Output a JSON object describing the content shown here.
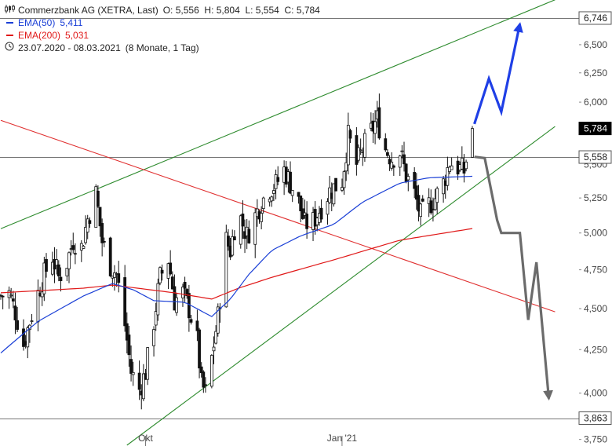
{
  "legend": {
    "instrument": "Commerzbank AG (XETRA, Last)",
    "ohlc": "O: 5,556  H: 5,804  L: 5,554  C: 5,784",
    "ema50_label": "EMA(50)",
    "ema50_value": "5,411",
    "ema200_label": "EMA(200)",
    "ema200_value": "5,031",
    "period": "23.07.2020 - 08.03.2021",
    "period_span": "(8 Monate, 1 Tag)"
  },
  "colors": {
    "candle": "#111111",
    "ema50": "#1a3fd6",
    "ema200": "#e01818",
    "channel": "#2e8b2e",
    "resistance_line": "#e03030",
    "horizontal": "#777777",
    "arrow_up": "#1f3fe6",
    "arrow_down": "#6b6b6b"
  },
  "chart_data": {
    "type": "candlestick",
    "y_scale": "log",
    "ylim": [
      3.72,
      6.88
    ],
    "y_ticks": [
      {
        "v": 6.5,
        "label": "6,500"
      },
      {
        "v": 6.25,
        "label": "6,250"
      },
      {
        "v": 6.0,
        "label": "6,000"
      },
      {
        "v": 5.25,
        "label": "5,250"
      },
      {
        "v": 5.0,
        "label": "5,000"
      },
      {
        "v": 4.75,
        "label": "4,750"
      },
      {
        "v": 4.5,
        "label": "4,500"
      },
      {
        "v": 4.25,
        "label": "4,250"
      },
      {
        "v": 4.0,
        "label": "4,000"
      },
      {
        "v": 3.75,
        "label": "3,750"
      }
    ],
    "y_ticks_partial": [
      {
        "v": 5.5,
        "label": "5,500"
      }
    ],
    "price_tags": [
      {
        "v": 6.746,
        "label": "6,746",
        "style": "outline"
      },
      {
        "v": 5.784,
        "label": "5,784",
        "style": "filled"
      },
      {
        "v": 5.558,
        "label": "5,558",
        "style": "outline"
      },
      {
        "v": 3.863,
        "label": "3,863",
        "style": "outline"
      }
    ],
    "x_range": [
      "2020-07-23",
      "2021-03-08"
    ],
    "x_ticks": [
      {
        "date": "2020-10-01",
        "label": "Okt"
      },
      {
        "date": "2021-01-04",
        "label": "Jan '21"
      }
    ],
    "close_anchors": [
      [
        "2020-07-23",
        4.58
      ],
      [
        "2020-07-27",
        4.6
      ],
      [
        "2020-07-30",
        4.48
      ],
      [
        "2020-08-03",
        4.28
      ],
      [
        "2020-08-06",
        4.42
      ],
      [
        "2020-08-10",
        4.6
      ],
      [
        "2020-08-13",
        4.72
      ],
      [
        "2020-08-17",
        4.84
      ],
      [
        "2020-08-20",
        4.7
      ],
      [
        "2020-08-24",
        4.8
      ],
      [
        "2020-08-27",
        4.95
      ],
      [
        "2020-08-31",
        4.9
      ],
      [
        "2020-09-03",
        5.1
      ],
      [
        "2020-09-07",
        5.28
      ],
      [
        "2020-09-10",
        4.94
      ],
      [
        "2020-09-14",
        4.78
      ],
      [
        "2020-09-17",
        4.72
      ],
      [
        "2020-09-21",
        4.4
      ],
      [
        "2020-09-24",
        4.12
      ],
      [
        "2020-09-28",
        4.02
      ],
      [
        "2020-10-01",
        4.12
      ],
      [
        "2020-10-05",
        4.42
      ],
      [
        "2020-10-08",
        4.7
      ],
      [
        "2020-10-12",
        4.82
      ],
      [
        "2020-10-15",
        4.55
      ],
      [
        "2020-10-19",
        4.6
      ],
      [
        "2020-10-22",
        4.5
      ],
      [
        "2020-10-26",
        4.3
      ],
      [
        "2020-10-28",
        4.05
      ],
      [
        "2020-10-30",
        4.0
      ],
      [
        "2020-11-02",
        4.2
      ],
      [
        "2020-11-05",
        4.45
      ],
      [
        "2020-11-09",
        4.95
      ],
      [
        "2020-11-11",
        4.88
      ],
      [
        "2020-11-13",
        5.04
      ],
      [
        "2020-11-16",
        5.1
      ],
      [
        "2020-11-19",
        4.98
      ],
      [
        "2020-11-23",
        5.12
      ],
      [
        "2020-11-26",
        5.22
      ],
      [
        "2020-11-30",
        5.32
      ],
      [
        "2020-12-03",
        5.35
      ],
      [
        "2020-12-07",
        5.46
      ],
      [
        "2020-12-10",
        5.36
      ],
      [
        "2020-12-14",
        5.22
      ],
      [
        "2020-12-17",
        5.06
      ],
      [
        "2020-12-21",
        5.08
      ],
      [
        "2020-12-24",
        5.16
      ],
      [
        "2020-12-29",
        5.3
      ],
      [
        "2021-01-04",
        5.38
      ],
      [
        "2021-01-07",
        5.72
      ],
      [
        "2021-01-11",
        5.5
      ],
      [
        "2021-01-14",
        5.62
      ],
      [
        "2021-01-18",
        5.76
      ],
      [
        "2021-01-21",
        5.86
      ],
      [
        "2021-01-25",
        5.62
      ],
      [
        "2021-01-28",
        5.55
      ],
      [
        "2021-02-01",
        5.6
      ],
      [
        "2021-02-04",
        5.42
      ],
      [
        "2021-02-08",
        5.28
      ],
      [
        "2021-02-11",
        5.12
      ],
      [
        "2021-02-15",
        5.2
      ],
      [
        "2021-02-18",
        5.25
      ],
      [
        "2021-02-22",
        5.36
      ],
      [
        "2021-02-25",
        5.52
      ],
      [
        "2021-03-01",
        5.48
      ],
      [
        "2021-03-04",
        5.45
      ],
      [
        "2021-03-08",
        5.784
      ]
    ],
    "last_candle": {
      "date": "2021-03-08",
      "o": 5.556,
      "h": 5.804,
      "l": 5.554,
      "c": 5.784
    },
    "ema50_anchors": [
      [
        "2020-07-23",
        4.23
      ],
      [
        "2020-08-10",
        4.42
      ],
      [
        "2020-09-01",
        4.58
      ],
      [
        "2020-09-15",
        4.66
      ],
      [
        "2020-09-25",
        4.62
      ],
      [
        "2020-10-05",
        4.55
      ],
      [
        "2020-10-20",
        4.54
      ],
      [
        "2020-11-02",
        4.45
      ],
      [
        "2020-11-11",
        4.56
      ],
      [
        "2020-11-20",
        4.72
      ],
      [
        "2020-12-01",
        4.88
      ],
      [
        "2020-12-15",
        4.98
      ],
      [
        "2020-12-31",
        5.06
      ],
      [
        "2021-01-14",
        5.22
      ],
      [
        "2021-02-01",
        5.36
      ],
      [
        "2021-02-15",
        5.4
      ],
      [
        "2021-03-08",
        5.411
      ]
    ],
    "ema200_anchors": [
      [
        "2020-07-23",
        4.6
      ],
      [
        "2020-09-01",
        4.63
      ],
      [
        "2020-09-15",
        4.65
      ],
      [
        "2020-10-15",
        4.6
      ],
      [
        "2020-11-02",
        4.56
      ],
      [
        "2020-11-15",
        4.63
      ],
      [
        "2020-12-01",
        4.7
      ],
      [
        "2021-01-01",
        4.82
      ],
      [
        "2021-02-01",
        4.95
      ],
      [
        "2021-03-08",
        5.031
      ]
    ],
    "horizontal_lines": [
      6.746,
      5.558,
      3.863
    ],
    "trendlines": [
      {
        "role": "channel-upper",
        "from": [
          "2020-07-23",
          5.03
        ],
        "to": [
          "2021-04-17",
          6.92
        ]
      },
      {
        "role": "channel-lower",
        "from": [
          "2020-09-22",
          3.72
        ],
        "to": [
          "2021-04-17",
          5.8
        ]
      },
      {
        "role": "falling",
        "from": [
          "2020-07-23",
          5.85
        ],
        "to": [
          "2021-04-17",
          4.48
        ]
      }
    ],
    "scenario_up": [
      [
        "2021-03-09",
        5.82
      ],
      [
        "2021-03-16",
        6.2
      ],
      [
        "2021-03-22",
        5.92
      ],
      [
        "2021-03-31",
        6.69
      ]
    ],
    "scenario_down": [
      [
        "2021-03-09",
        5.56
      ],
      [
        "2021-03-14",
        5.55
      ],
      [
        "2021-03-20",
        5.09
      ],
      [
        "2021-03-22",
        5.0
      ],
      [
        "2021-03-31",
        5.0
      ],
      [
        "2021-04-04",
        4.43
      ],
      [
        "2021-04-08",
        4.8
      ],
      [
        "2021-04-14",
        3.97
      ]
    ]
  }
}
